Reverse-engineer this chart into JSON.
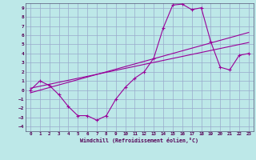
{
  "title": "",
  "xlabel": "Windchill (Refroidissement éolien,°C)",
  "ylabel": "",
  "background_color": "#bde8e8",
  "grid_color": "#99aacc",
  "line_color": "#990099",
  "xlim": [
    -0.5,
    23.5
  ],
  "ylim": [
    -4.5,
    9.5
  ],
  "xticks": [
    0,
    1,
    2,
    3,
    4,
    5,
    6,
    7,
    8,
    9,
    10,
    11,
    12,
    13,
    14,
    15,
    16,
    17,
    18,
    19,
    20,
    21,
    22,
    23
  ],
  "yticks": [
    -4,
    -3,
    -2,
    -1,
    0,
    1,
    2,
    3,
    4,
    5,
    6,
    7,
    8,
    9
  ],
  "series1_x": [
    0,
    1,
    2,
    3,
    4,
    5,
    6,
    7,
    8,
    9,
    10,
    11,
    12,
    13,
    14,
    15,
    16,
    17,
    18,
    19,
    20,
    21,
    22,
    23
  ],
  "series1_y": [
    0,
    1,
    0.5,
    -0.5,
    -1.8,
    -2.8,
    -2.8,
    -3.3,
    -2.8,
    -1.0,
    0.3,
    1.3,
    2.0,
    3.5,
    6.8,
    9.3,
    9.4,
    8.8,
    9.0,
    5.3,
    2.5,
    2.2,
    3.8,
    4.0
  ],
  "series2_x": [
    0,
    23
  ],
  "series2_y": [
    -0.3,
    6.3
  ],
  "series3_x": [
    0,
    23
  ],
  "series3_y": [
    0.2,
    5.2
  ]
}
